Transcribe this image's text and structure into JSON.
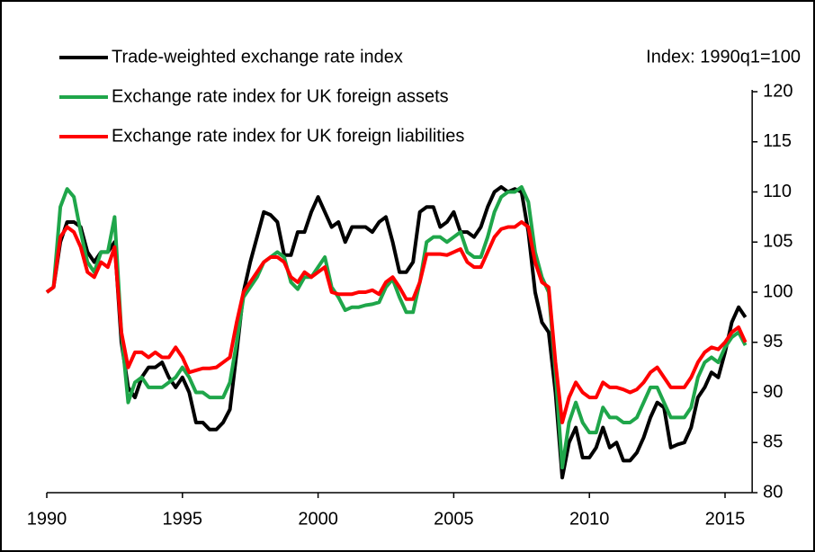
{
  "chart_data": {
    "type": "line",
    "annotation": "Index: 1990q1=100",
    "x": [
      1990,
      1990.25,
      1990.5,
      1990.75,
      1991,
      1991.25,
      1991.5,
      1991.75,
      1992,
      1992.25,
      1992.5,
      1992.75,
      1993,
      1993.25,
      1993.5,
      1993.75,
      1994,
      1994.25,
      1994.5,
      1994.75,
      1995,
      1995.25,
      1995.5,
      1995.75,
      1996,
      1996.25,
      1996.5,
      1996.75,
      1997,
      1997.25,
      1997.5,
      1997.75,
      1998,
      1998.25,
      1998.5,
      1998.75,
      1999,
      1999.25,
      1999.5,
      1999.75,
      2000,
      2000.25,
      2000.5,
      2000.75,
      2001,
      2001.25,
      2001.5,
      2001.75,
      2002,
      2002.25,
      2002.5,
      2002.75,
      2003,
      2003.25,
      2003.5,
      2003.75,
      2004,
      2004.25,
      2004.5,
      2004.75,
      2005,
      2005.25,
      2005.5,
      2005.75,
      2006,
      2006.25,
      2006.5,
      2006.75,
      2007,
      2007.25,
      2007.5,
      2007.75,
      2008,
      2008.25,
      2008.5,
      2008.75,
      2009,
      2009.25,
      2009.5,
      2009.75,
      2010,
      2010.25,
      2010.5,
      2010.75,
      2011,
      2011.25,
      2011.5,
      2011.75,
      2012,
      2012.25,
      2012.5,
      2012.75,
      2013,
      2013.25,
      2013.5,
      2013.75,
      2014,
      2014.25,
      2014.5,
      2014.75,
      2015,
      2015.25,
      2015.5,
      2015.75
    ],
    "series": [
      {
        "name": "Trade-weighted exchange rate index",
        "color": "#000000",
        "values": [
          100,
          100.5,
          105,
          107,
          107,
          106.5,
          104,
          103,
          104,
          104,
          105,
          95,
          90.5,
          89.5,
          91.5,
          92.5,
          92.5,
          93,
          91.5,
          90.5,
          91.5,
          90,
          87,
          87,
          86.3,
          86.3,
          87,
          88.3,
          94,
          100,
          103,
          105.5,
          108,
          107.7,
          107,
          103.7,
          103.7,
          106,
          106,
          108,
          109.5,
          108,
          106.5,
          107,
          105,
          106.5,
          106.5,
          106.5,
          106,
          107,
          107.5,
          105,
          102,
          102,
          103,
          108,
          108.5,
          108.5,
          106.5,
          107,
          108,
          106,
          106,
          105.5,
          106.5,
          108.5,
          110,
          110.5,
          110,
          110.3,
          110,
          106,
          100,
          97,
          96,
          90,
          81.5,
          85,
          86.5,
          83.5,
          83.5,
          84.5,
          86.5,
          84.5,
          85,
          83.2,
          83.2,
          84,
          85.5,
          87.5,
          89,
          88.5,
          84.5,
          84.8,
          85,
          86.5,
          89.5,
          90.5,
          92,
          91.5,
          94,
          97,
          98.5,
          97.5
        ]
      },
      {
        "name": "Exchange rate index for UK foreign assets",
        "color": "#1fa64a",
        "values": [
          100,
          100.5,
          108.5,
          110.3,
          109.5,
          106,
          103,
          102,
          104,
          104,
          107.5,
          96,
          89,
          91,
          91.5,
          90.5,
          90.5,
          90.5,
          91,
          91.5,
          92.5,
          91.5,
          90,
          90,
          89.5,
          89.5,
          89.5,
          91,
          95,
          99.5,
          100.5,
          101.5,
          103,
          103.5,
          104,
          103.5,
          101,
          100.3,
          101.5,
          101.5,
          102.5,
          103.5,
          100.5,
          99.5,
          98.2,
          98.5,
          98.5,
          98.7,
          98.8,
          99,
          100.5,
          101.3,
          99.5,
          98,
          98,
          101,
          105,
          105.5,
          105.5,
          105,
          105.5,
          106,
          104,
          103.5,
          103.5,
          105.5,
          108,
          109.5,
          110,
          110,
          110.5,
          109,
          104,
          101.5,
          100,
          92,
          82.5,
          87,
          89,
          87,
          86,
          86,
          88.5,
          87.5,
          87.5,
          87,
          87,
          87.5,
          89,
          90.5,
          90.5,
          89,
          87.5,
          87.5,
          87.5,
          88.5,
          91.5,
          93,
          93.5,
          93,
          94.5,
          95.5,
          96,
          94.7
        ]
      },
      {
        "name": "Exchange rate index for UK foreign liabilities",
        "color": "#ff0000",
        "values": [
          100,
          100.5,
          105.5,
          106.5,
          106,
          104.5,
          102,
          101.5,
          103,
          102.5,
          104.5,
          96,
          92.5,
          94,
          94,
          93.5,
          94,
          93.5,
          93.5,
          94.5,
          93.5,
          92,
          92.2,
          92.4,
          92.4,
          92.5,
          93,
          93.5,
          97,
          100,
          101,
          102,
          103,
          103.5,
          103.5,
          103,
          101.5,
          101,
          102,
          101.5,
          102,
          102.5,
          100,
          99.8,
          99.8,
          99.8,
          100,
          100,
          100.2,
          99.8,
          101,
          101.5,
          100.5,
          99.3,
          99.3,
          101,
          103.8,
          103.8,
          103.8,
          103.7,
          104,
          104.3,
          103,
          102.5,
          102.5,
          104,
          105.5,
          106.3,
          106.5,
          106.5,
          107,
          106.5,
          103,
          101,
          100.5,
          93,
          87,
          89.5,
          91,
          90,
          89.5,
          89.5,
          91,
          90.5,
          90.5,
          90.3,
          90,
          90.3,
          91,
          92,
          92.5,
          91.5,
          90.5,
          90.5,
          90.5,
          91.5,
          93,
          94,
          94.5,
          94.3,
          95,
          96,
          96.5,
          95
        ]
      }
    ],
    "xlim": [
      1990,
      2016
    ],
    "xticks": [
      1990,
      1995,
      2000,
      2005,
      2010,
      2015
    ],
    "ylim": [
      80,
      120
    ],
    "yticks": [
      80,
      85,
      90,
      95,
      100,
      105,
      110,
      115,
      120
    ]
  }
}
